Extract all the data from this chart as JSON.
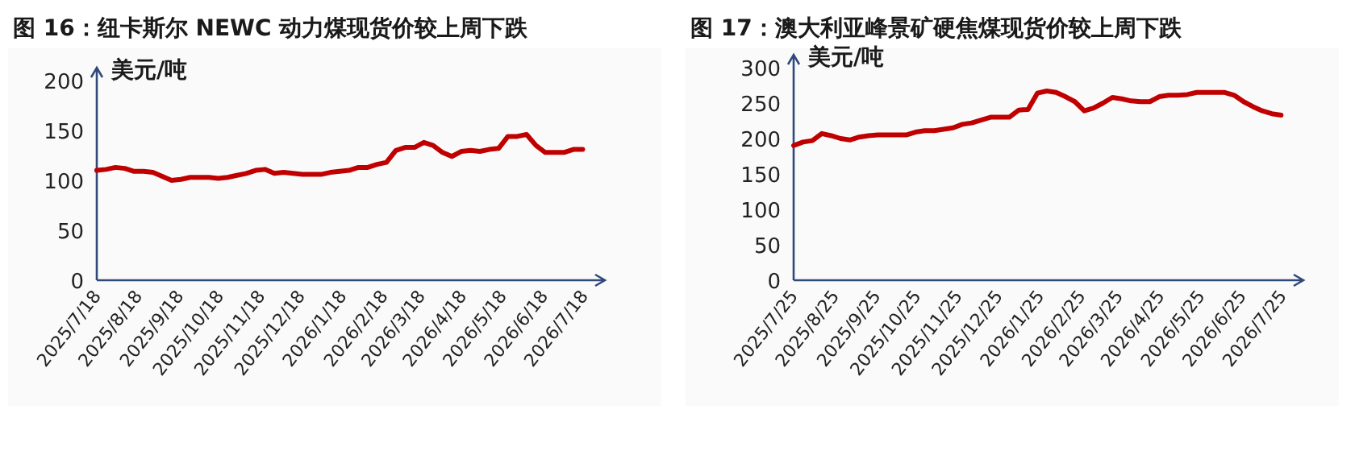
{
  "chart_data": [
    {
      "type": "line",
      "title": "图 16：纽卡斯尔 NEWC 动力煤现货价较上周下跌",
      "ylabel": "美元/吨",
      "x": [
        "2025-07-18",
        "2025-07-25",
        "2025-08-01",
        "2025-08-08",
        "2025-08-15",
        "2025-08-22",
        "2025-08-29",
        "2025-09-05",
        "2025-09-12",
        "2025-09-19",
        "2025-09-26",
        "2025-10-03",
        "2025-10-10",
        "2025-10-17",
        "2025-10-24",
        "2025-10-31",
        "2025-11-07",
        "2025-11-14",
        "2025-11-21",
        "2025-11-28",
        "2025-12-05",
        "2025-12-12",
        "2025-12-19",
        "2025-12-26",
        "2026-01-02",
        "2026-01-09",
        "2026-01-16",
        "2026-01-23",
        "2026-01-30",
        "2026-02-06",
        "2026-02-13",
        "2026-02-20",
        "2026-02-27",
        "2026-03-06",
        "2026-03-13",
        "2026-03-20",
        "2026-03-27",
        "2026-04-03",
        "2026-04-10",
        "2026-04-17",
        "2026-04-24",
        "2026-05-01",
        "2026-05-08",
        "2026-05-15",
        "2026-05-22",
        "2026-05-29",
        "2026-06-05",
        "2026-06-12",
        "2026-06-19",
        "2026-06-26",
        "2026-07-03",
        "2026-07-10",
        "2026-07-17"
      ],
      "series": [
        {
          "color": "#c00000",
          "values": [
            110,
            111,
            113,
            112,
            109,
            109,
            108,
            104,
            100,
            101,
            103,
            103,
            103,
            102,
            103,
            105,
            107,
            110,
            111,
            107,
            108,
            107,
            106,
            106,
            106,
            108,
            109,
            110,
            113,
            113,
            116,
            118,
            130,
            133,
            133,
            138,
            135,
            128,
            124,
            129,
            130,
            129,
            131,
            132,
            144,
            144,
            146,
            135,
            128,
            128,
            128,
            131,
            131
          ]
        }
      ],
      "xlim": [
        "2025-07-18",
        "2026-07-24"
      ],
      "xticks": [
        {
          "value": "2025-07-18",
          "label": "2025/7/18"
        },
        {
          "value": "2025-08-18",
          "label": "2025/8/18"
        },
        {
          "value": "2025-09-18",
          "label": "2025/9/18"
        },
        {
          "value": "2025-10-18",
          "label": "2025/10/18"
        },
        {
          "value": "2025-11-18",
          "label": "2025/11/18"
        },
        {
          "value": "2025-12-18",
          "label": "2025/12/18"
        },
        {
          "value": "2026-01-18",
          "label": "2026/1/18"
        },
        {
          "value": "2026-02-18",
          "label": "2026/2/18"
        },
        {
          "value": "2026-03-18",
          "label": "2026/3/18"
        },
        {
          "value": "2026-04-18",
          "label": "2026/4/18"
        },
        {
          "value": "2026-05-18",
          "label": "2026/5/18"
        },
        {
          "value": "2026-06-18",
          "label": "2026/6/18"
        },
        {
          "value": "2026-07-18",
          "label": "2026/7/18"
        }
      ],
      "ylim": [
        0,
        200
      ],
      "yticks": [
        0,
        50,
        100,
        150,
        200
      ],
      "grid": false,
      "marker": "none",
      "line_style": "solid"
    },
    {
      "type": "line",
      "title": "图 17：澳大利亚峰景矿硬焦煤现货价较上周下跌",
      "ylabel": "美元/吨",
      "x": [
        "2025-07-25",
        "2025-08-01",
        "2025-08-08",
        "2025-08-15",
        "2025-08-22",
        "2025-08-29",
        "2025-09-05",
        "2025-09-12",
        "2025-09-19",
        "2025-09-26",
        "2025-10-03",
        "2025-10-10",
        "2025-10-17",
        "2025-10-24",
        "2025-10-31",
        "2025-11-07",
        "2025-11-14",
        "2025-11-21",
        "2025-11-28",
        "2025-12-05",
        "2025-12-12",
        "2025-12-19",
        "2025-12-26",
        "2026-01-02",
        "2026-01-09",
        "2026-01-16",
        "2026-01-23",
        "2026-01-30",
        "2026-02-06",
        "2026-02-13",
        "2026-02-20",
        "2026-02-27",
        "2026-03-06",
        "2026-03-13",
        "2026-03-20",
        "2026-03-27",
        "2026-04-03",
        "2026-04-10",
        "2026-04-17",
        "2026-04-24",
        "2026-05-01",
        "2026-05-08",
        "2026-05-15",
        "2026-05-22",
        "2026-05-29",
        "2026-06-05",
        "2026-06-12",
        "2026-06-19",
        "2026-06-26",
        "2026-07-03",
        "2026-07-10",
        "2026-07-17",
        "2026-07-24"
      ],
      "series": [
        {
          "color": "#c00000",
          "values": [
            190,
            195,
            197,
            207,
            204,
            200,
            198,
            202,
            204,
            205,
            205,
            205,
            205,
            209,
            211,
            211,
            213,
            215,
            220,
            222,
            226,
            230,
            230,
            230,
            240,
            241,
            264,
            267,
            265,
            259,
            252,
            239,
            243,
            250,
            258,
            256,
            253,
            252,
            252,
            259,
            261,
            261,
            262,
            265,
            265,
            265,
            265,
            261,
            252,
            245,
            239,
            235,
            233
          ]
        }
      ],
      "xlim": [
        "2025-07-25",
        "2026-07-31"
      ],
      "xticks": [
        {
          "value": "2025-07-25",
          "label": "2025/7/25"
        },
        {
          "value": "2025-08-25",
          "label": "2025/8/25"
        },
        {
          "value": "2025-09-25",
          "label": "2025/9/25"
        },
        {
          "value": "2025-10-25",
          "label": "2025/10/25"
        },
        {
          "value": "2025-11-25",
          "label": "2025/11/25"
        },
        {
          "value": "2025-12-25",
          "label": "2025/12/25"
        },
        {
          "value": "2026-01-25",
          "label": "2026/1/25"
        },
        {
          "value": "2026-02-25",
          "label": "2026/2/25"
        },
        {
          "value": "2026-03-25",
          "label": "2026/3/25"
        },
        {
          "value": "2026-04-25",
          "label": "2026/4/25"
        },
        {
          "value": "2026-05-25",
          "label": "2026/5/25"
        },
        {
          "value": "2026-06-25",
          "label": "2026/6/25"
        },
        {
          "value": "2026-07-25",
          "label": "2026/7/25"
        }
      ],
      "ylim": [
        0,
        300
      ],
      "yticks": [
        0,
        50,
        100,
        150,
        200,
        250,
        300
      ],
      "grid": false,
      "marker": "none",
      "line_style": "solid"
    }
  ]
}
